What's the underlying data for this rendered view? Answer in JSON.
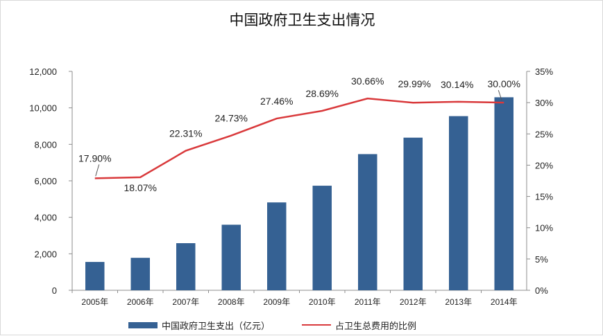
{
  "chart_data": {
    "type": "bar",
    "title": "中国政府卫生支出情况",
    "categories": [
      "2005年",
      "2006年",
      "2007年",
      "2008年",
      "2009年",
      "2010年",
      "2011年",
      "2012年",
      "2013年",
      "2014年"
    ],
    "y_ticks": [
      "12,000",
      "10,000",
      "8,000",
      "6,000",
      "4,000",
      "2,000",
      "0"
    ],
    "y2_ticks": [
      "35%",
      "30%",
      "25%",
      "20%",
      "15%",
      "10%",
      "5%",
      "0%"
    ],
    "ylim": [
      0,
      12000
    ],
    "y2lim": [
      0,
      35
    ],
    "series": [
      {
        "name": "中国政府卫生支出（亿元）",
        "type": "bar",
        "axis": "left",
        "color": "#356193",
        "values": [
          1553,
          1779,
          2582,
          3594,
          4816,
          5732,
          7464,
          8366,
          9546,
          10580
        ]
      },
      {
        "name": "占卫生总费用的比例",
        "type": "line",
        "axis": "right",
        "color": "#d9393b",
        "values": [
          17.9,
          18.07,
          22.31,
          24.73,
          27.46,
          28.69,
          30.66,
          29.99,
          30.14,
          30.0
        ],
        "labels": [
          "17.90%",
          "18.07%",
          "22.31%",
          "24.73%",
          "27.46%",
          "28.69%",
          "30.66%",
          "29.99%",
          "30.14%",
          "30.00%"
        ]
      }
    ],
    "grid": false,
    "legend_position": "bottom"
  }
}
